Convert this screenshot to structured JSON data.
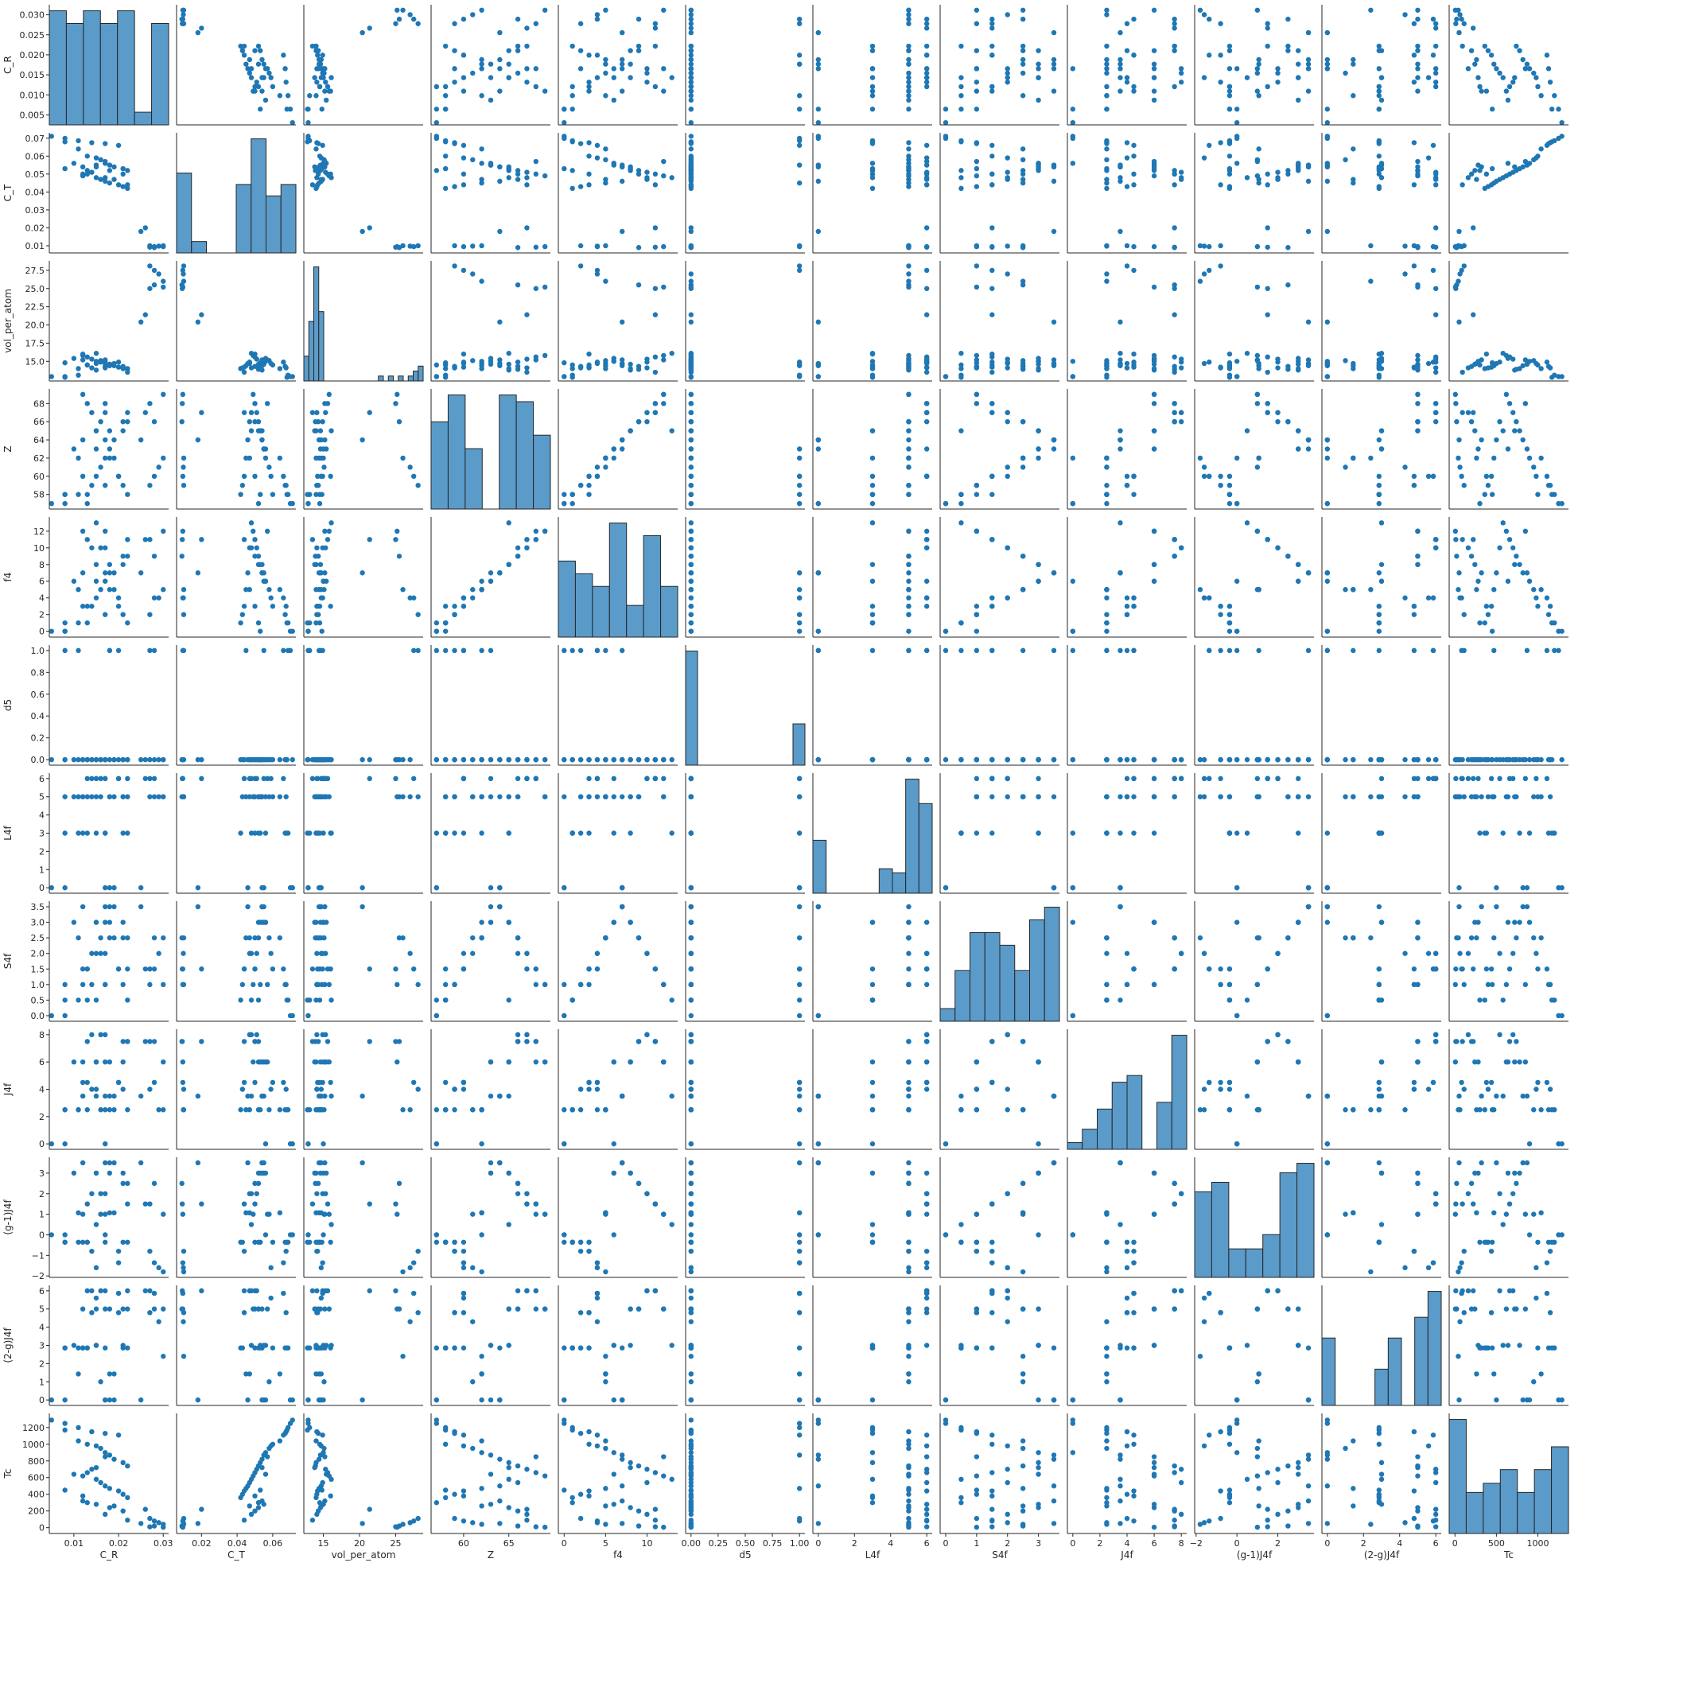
{
  "chart_data": {
    "type": "scatter",
    "title": "",
    "variables": [
      "C_R",
      "C_T",
      "vol_per_atom",
      "Z",
      "f4",
      "d5",
      "L4f",
      "S4f",
      "J4f",
      "(g-1)J4f",
      "(2-g)J4f",
      "Tc"
    ],
    "diagonal": "histogram",
    "point_color": "#1f77b4",
    "hist_color": "#5b9bc9",
    "grid": false,
    "legend": "none",
    "axis_ticks": {
      "C_R": {
        "range": [
          0.0045,
          0.0312
        ],
        "ticks": [
          0.005,
          0.01,
          0.015,
          0.02,
          0.025,
          0.03
        ],
        "x_labels": [
          "0.01",
          "0.02",
          "0.03"
        ],
        "x_values": [
          0.01,
          0.02,
          0.03
        ],
        "y_labels": [
          "0.005",
          "0.010",
          "0.015",
          "0.020",
          "0.025",
          "0.030"
        ]
      },
      "C_T": {
        "range": [
          0.006,
          0.073
        ],
        "ticks": [
          0.01,
          0.02,
          0.03,
          0.04,
          0.05,
          0.06,
          0.07
        ],
        "x_labels": [
          "0.02",
          "0.04",
          "0.06"
        ],
        "x_values": [
          0.02,
          0.04,
          0.06
        ],
        "y_labels": [
          "0.01",
          "0.02",
          "0.03",
          "0.04",
          "0.05",
          "0.06",
          "0.07"
        ]
      },
      "vol_per_atom": {
        "range": [
          12.3,
          28.8
        ],
        "ticks": [
          15,
          17.5,
          20,
          22.5,
          25,
          27.5
        ],
        "x_labels": [
          "15",
          "20",
          "25"
        ],
        "x_values": [
          15,
          20,
          25
        ],
        "y_labels": [
          "15.0",
          "17.5",
          "20.0",
          "22.5",
          "25.0",
          "27.5"
        ]
      },
      "Z": {
        "range": [
          56.4,
          69.6
        ],
        "ticks": [
          58,
          60,
          62,
          64,
          66,
          68
        ],
        "x_labels": [
          "60",
          "65"
        ],
        "x_values": [
          60,
          65
        ],
        "y_labels": [
          "58",
          "60",
          "62",
          "64",
          "66",
          "68"
        ]
      },
      "f4": {
        "range": [
          -0.7,
          13.7
        ],
        "ticks": [
          0,
          2,
          4,
          6,
          8,
          10,
          12
        ],
        "x_labels": [
          "0",
          "5",
          "10"
        ],
        "x_values": [
          0,
          5,
          10
        ],
        "y_labels": [
          "0",
          "2",
          "4",
          "6",
          "8",
          "10",
          "12"
        ]
      },
      "d5": {
        "range": [
          -0.05,
          1.05
        ],
        "ticks": [
          0,
          0.2,
          0.4,
          0.6,
          0.8,
          1.0
        ],
        "x_labels": [
          "0.00",
          "0.25",
          "0.50",
          "0.75",
          "1.00"
        ],
        "x_values": [
          0,
          0.25,
          0.5,
          0.75,
          1.0
        ],
        "y_labels": [
          "0.0",
          "0.2",
          "0.4",
          "0.6",
          "0.8",
          "1.0"
        ]
      },
      "L4f": {
        "range": [
          -0.3,
          6.3
        ],
        "ticks": [
          0,
          1,
          2,
          3,
          4,
          5,
          6
        ],
        "x_labels": [
          "0",
          "2",
          "4",
          "6"
        ],
        "x_values": [
          0,
          2,
          4,
          6
        ],
        "y_labels": [
          "0",
          "1",
          "2",
          "3",
          "4",
          "5",
          "6"
        ]
      },
      "S4f": {
        "range": [
          -0.18,
          3.68
        ],
        "ticks": [
          0,
          0.5,
          1,
          1.5,
          2,
          2.5,
          3,
          3.5
        ],
        "x_labels": [
          "0",
          "1",
          "2",
          "3"
        ],
        "x_values": [
          0,
          1,
          2,
          3
        ],
        "y_labels": [
          "0.0",
          "0.5",
          "1.0",
          "1.5",
          "2.0",
          "2.5",
          "3.0",
          "3.5"
        ]
      },
      "J4f": {
        "range": [
          -0.4,
          8.4
        ],
        "ticks": [
          0,
          2,
          4,
          6,
          8
        ],
        "x_labels": [
          "0",
          "2",
          "4",
          "6",
          "8"
        ],
        "x_values": [
          0,
          2,
          4,
          6,
          8
        ],
        "y_labels": [
          "0",
          "2",
          "4",
          "6",
          "8"
        ]
      },
      "(g-1)J4f": {
        "range": [
          -2.07,
          3.77
        ],
        "ticks": [
          -2,
          -1,
          0,
          1,
          2,
          3
        ],
        "x_labels": [
          "−2",
          "0",
          "2"
        ],
        "x_values": [
          -2,
          0,
          2
        ],
        "y_labels": [
          "−2",
          "−1",
          "0",
          "1",
          "2",
          "3"
        ]
      },
      "(2-g)J4f": {
        "range": [
          -0.3,
          6.3
        ],
        "ticks": [
          0,
          1,
          2,
          3,
          4,
          5,
          6
        ],
        "x_labels": [
          "0",
          "2",
          "4",
          "6"
        ],
        "x_values": [
          0,
          2,
          4,
          6
        ],
        "y_labels": [
          "0",
          "1",
          "2",
          "3",
          "4",
          "5",
          "6"
        ]
      },
      "Tc": {
        "range": [
          -70,
          1370
        ],
        "ticks": [
          0,
          200,
          400,
          600,
          800,
          1000,
          1200
        ],
        "x_labels": [
          "0",
          "500",
          "1000"
        ],
        "x_values": [
          0,
          500,
          1000
        ],
        "y_labels": [
          "0",
          "200",
          "400",
          "600",
          "800",
          "1000",
          "1200"
        ]
      }
    },
    "histogram_bins": {
      "C_R": [
        9,
        8,
        9,
        8,
        9,
        1,
        8
      ],
      "C_T": [
        7,
        1,
        0,
        0,
        6,
        10,
        5,
        6
      ],
      "vol_per_atom": [
        5,
        12,
        23,
        14,
        0,
        0,
        0,
        0,
        0,
        0,
        0,
        0,
        0,
        0,
        0,
        1,
        0,
        1,
        0,
        1,
        0,
        1,
        2,
        3
      ],
      "Z": [
        13,
        17,
        9,
        0,
        17,
        16,
        11
      ],
      "f4": [
        12,
        10,
        8,
        18,
        5,
        16,
        8
      ],
      "d5": [
        58,
        0,
        0,
        0,
        0,
        0,
        0,
        0,
        0,
        21
      ],
      "L4f": [
        13,
        0,
        0,
        0,
        0,
        6,
        5,
        28,
        22
      ],
      "S4f": [
        1,
        4,
        7,
        7,
        6,
        4,
        8,
        9
      ],
      "J4f": [
        1,
        3,
        6,
        10,
        11,
        0,
        7,
        17
      ],
      "(g-1)J4f": [
        18,
        20,
        6,
        6,
        9,
        22,
        24
      ],
      "(2-g)J4f": [
        13,
        0,
        0,
        0,
        7,
        13,
        0,
        17,
        22
      ],
      "Tc": [
        25,
        9,
        11,
        14,
        9,
        14,
        19
      ]
    },
    "records": [
      [
        0.005,
        0.0711,
        12.9,
        57,
        0,
        0,
        0,
        0,
        0,
        0,
        0,
        1290
      ],
      [
        0.008,
        0.0699,
        12.9,
        57,
        0,
        1,
        0,
        0,
        0,
        0,
        0,
        1250
      ],
      [
        0.011,
        0.0686,
        13.1,
        58,
        1,
        1,
        3,
        0.5,
        2.5,
        -0.36,
        2.86,
        1200
      ],
      [
        0.008,
        0.068,
        12.8,
        58,
        1,
        0,
        3,
        0.5,
        2.5,
        -0.36,
        2.86,
        1170
      ],
      [
        0.014,
        0.0675,
        14.1,
        59,
        3,
        0,
        5,
        1.0,
        4.0,
        -0.8,
        4.8,
        1150
      ],
      [
        0.017,
        0.067,
        14.3,
        59,
        2,
        0,
        3,
        1.0,
        2.5,
        -0.36,
        2.86,
        1130
      ],
      [
        0.02,
        0.066,
        14.9,
        60,
        4,
        1,
        6,
        1.5,
        4.5,
        -1.36,
        5.86,
        1110
      ],
      [
        0.011,
        0.064,
        14.0,
        62,
        5,
        0,
        5,
        2.5,
        2.5,
        1.07,
        1.43,
        1040
      ],
      [
        0.013,
        0.06,
        14.5,
        58,
        3,
        0,
        5,
        1.5,
        4.5,
        -0.36,
        2.86,
        1000
      ],
      [
        0.015,
        0.059,
        14.7,
        60,
        4,
        0,
        6,
        2.0,
        4.0,
        -1.6,
        5.6,
        980
      ],
      [
        0.016,
        0.058,
        15.1,
        61,
        5,
        0,
        5,
        2.5,
        2.5,
        1.0,
        1.0,
        950
      ],
      [
        0.017,
        0.056,
        15.0,
        62,
        6,
        0,
        3,
        3.0,
        0,
        0,
        0,
        900
      ],
      [
        0.018,
        0.055,
        14.6,
        63,
        7,
        1,
        0,
        3.5,
        3.5,
        3.5,
        0,
        870
      ],
      [
        0.019,
        0.054,
        14.4,
        64,
        7,
        0,
        0,
        3.5,
        3.5,
        3.5,
        0,
        820
      ],
      [
        0.021,
        0.053,
        14.0,
        65,
        8,
        0,
        3,
        3.0,
        6.0,
        3.0,
        3.0,
        780
      ],
      [
        0.022,
        0.052,
        13.9,
        66,
        9,
        0,
        5,
        2.5,
        7.5,
        2.5,
        5.0,
        740
      ],
      [
        0.014,
        0.051,
        15.3,
        67,
        10,
        0,
        6,
        2.0,
        8.0,
        2.0,
        6.0,
        700
      ],
      [
        0.013,
        0.05,
        15.6,
        68,
        11,
        0,
        6,
        1.5,
        7.5,
        1.5,
        6.0,
        660
      ],
      [
        0.012,
        0.049,
        15.8,
        69,
        12,
        0,
        5,
        1.0,
        6.0,
        1.0,
        5.0,
        620
      ],
      [
        0.015,
        0.048,
        16.1,
        65,
        13,
        0,
        3,
        0.5,
        3.5,
        0.5,
        3.0,
        580
      ],
      [
        0.016,
        0.047,
        14.9,
        66,
        10,
        0,
        6,
        2.0,
        8.0,
        2.0,
        6.0,
        540
      ],
      [
        0.017,
        0.046,
        14.7,
        64,
        7,
        0,
        0,
        3.5,
        3.5,
        3.5,
        0,
        500
      ],
      [
        0.018,
        0.045,
        14.4,
        62,
        5,
        1,
        5,
        2.5,
        2.5,
        1.07,
        1.43,
        470
      ],
      [
        0.02,
        0.044,
        14.2,
        60,
        3,
        0,
        6,
        1.5,
        4.5,
        -0.8,
        4.8,
        440
      ],
      [
        0.021,
        0.043,
        14.1,
        59,
        2,
        0,
        5,
        1.0,
        4.0,
        -0.36,
        2.86,
        400
      ],
      [
        0.022,
        0.042,
        14.0,
        58,
        1,
        0,
        3,
        0.5,
        2.5,
        -0.36,
        2.86,
        360
      ],
      [
        0.012,
        0.054,
        15.2,
        64,
        7,
        0,
        5,
        3.5,
        3.5,
        3.5,
        2.86,
        320
      ],
      [
        0.015,
        0.055,
        15.0,
        63,
        6,
        0,
        6,
        3.0,
        6.0,
        3.0,
        3.0,
        280
      ],
      [
        0.018,
        0.052,
        14.6,
        65,
        8,
        0,
        5,
        3.0,
        6.0,
        3.0,
        5.0,
        240
      ],
      [
        0.021,
        0.05,
        14.3,
        66,
        9,
        0,
        5,
        2.5,
        7.5,
        2.5,
        5.0,
        200
      ],
      [
        0.017,
        0.048,
        14.1,
        67,
        10,
        0,
        6,
        2.0,
        8.0,
        2.0,
        6.0,
        160
      ],
      [
        0.026,
        0.02,
        21.4,
        67,
        11,
        0,
        6,
        1.5,
        7.5,
        1.5,
        6.0,
        220
      ],
      [
        0.025,
        0.018,
        20.4,
        64,
        7,
        0,
        0,
        3.5,
        3.5,
        3.5,
        0,
        50
      ],
      [
        0.027,
        0.01,
        28.1,
        59,
        2,
        1,
        5,
        1.0,
        4.0,
        -0.8,
        4.8,
        110
      ],
      [
        0.028,
        0.0095,
        27.5,
        60,
        4,
        1,
        6,
        1.5,
        4.5,
        -1.36,
        5.86,
        80
      ],
      [
        0.029,
        0.0098,
        27.0,
        61,
        4,
        0,
        5,
        2.0,
        2.5,
        -1.6,
        4.3,
        60
      ],
      [
        0.03,
        0.01,
        26.0,
        62,
        5,
        0,
        5,
        2.5,
        2.5,
        -1.8,
        2.4,
        40
      ],
      [
        0.028,
        0.009,
        25.5,
        66,
        9,
        0,
        5,
        2.5,
        7.5,
        2.5,
        5.0,
        20
      ],
      [
        0.027,
        0.0092,
        25.0,
        68,
        11,
        0,
        6,
        1.5,
        7.5,
        1.5,
        6.0,
        10
      ],
      [
        0.03,
        0.0095,
        25.2,
        69,
        12,
        0,
        5,
        1.0,
        6.0,
        1.0,
        5.0,
        5
      ],
      [
        0.008,
        0.053,
        14.8,
        58,
        0,
        0,
        5,
        1.0,
        2.5,
        -0.36,
        2.86,
        450
      ],
      [
        0.01,
        0.056,
        15.4,
        63,
        6,
        0,
        5,
        3.0,
        6.0,
        3.0,
        3.0,
        640
      ],
      [
        0.022,
        0.044,
        13.5,
        67,
        11,
        0,
        6,
        1.5,
        7.5,
        1.5,
        6.0,
        90
      ],
      [
        0.012,
        0.05,
        16.0,
        60,
        3,
        0,
        3,
        1.5,
        4.5,
        -0.36,
        2.86,
        380
      ],
      [
        0.019,
        0.047,
        14.7,
        62,
        5,
        0,
        5,
        2.5,
        2.5,
        1.07,
        1.43,
        260
      ],
      [
        0.015,
        0.054,
        13.8,
        65,
        8,
        0,
        5,
        3.0,
        6.0,
        3.0,
        5.0,
        720
      ],
      [
        0.017,
        0.057,
        15.2,
        68,
        12,
        0,
        6,
        1.0,
        6.0,
        1.0,
        5.0,
        850
      ],
      [
        0.013,
        0.052,
        14.5,
        57,
        1,
        0,
        3,
        0.5,
        2.5,
        -0.36,
        2.86,
        300
      ]
    ]
  }
}
